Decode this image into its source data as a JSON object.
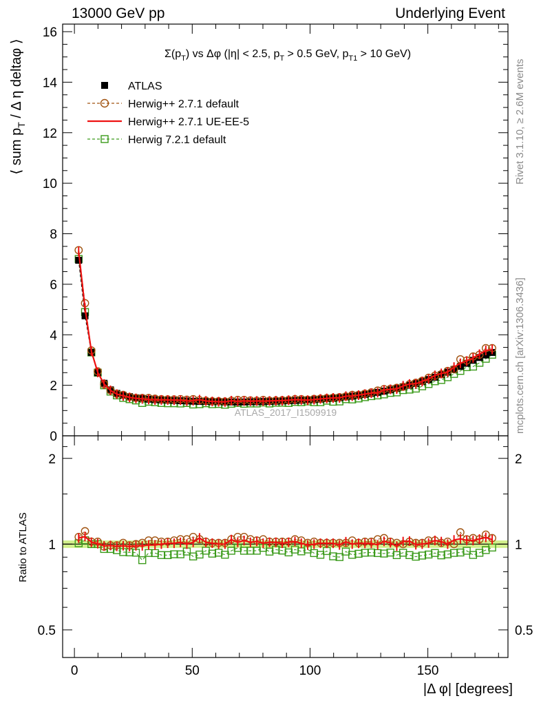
{
  "header": {
    "left": "13000 GeV pp",
    "right": "Underlying Event"
  },
  "side_labels": {
    "rivet": "Rivet 3.1.10, ≥ 2.6M events",
    "mcplots": "mcplots.cern.ch [arXiv:1306.3436]"
  },
  "chart_data": [
    {
      "type": "scatter",
      "title_parts": {
        "main": "Σ(p",
        "sub1": "T",
        "mid1": ") vs Δφ (|η| < 2.5, p",
        "sub2": "T",
        "mid2": " > 0.5 GeV, p",
        "sub3": "T1",
        "end": " > 10 GeV)"
      },
      "ylabel": "⟨ sum p_T / Δ η deltaφ ⟩",
      "ylabel_parts": {
        "a": "⟨ sum p",
        "sub": "T",
        "b": " / Δ η deltaφ ⟩"
      },
      "watermark": "ATLAS_2017_I1509919",
      "xlim": [
        -5,
        184
      ],
      "ylim": [
        0,
        16.3
      ],
      "yticks": [
        0,
        2,
        4,
        6,
        8,
        10,
        12,
        14,
        16
      ],
      "yticklabels": [
        "0",
        "2",
        "4",
        "6",
        "8",
        "10",
        "12",
        "14",
        "16"
      ],
      "legend_position": "top-left",
      "x": [
        1.8,
        4.5,
        7.2,
        9.9,
        12.6,
        15.3,
        18.0,
        20.7,
        23.4,
        26.1,
        28.8,
        31.5,
        34.2,
        36.9,
        39.6,
        42.3,
        45.0,
        47.7,
        50.4,
        53.1,
        55.8,
        58.5,
        61.2,
        63.9,
        66.6,
        69.3,
        72.0,
        74.7,
        77.4,
        80.1,
        82.8,
        85.5,
        88.2,
        90.9,
        93.6,
        96.3,
        99.0,
        101.7,
        104.4,
        107.1,
        109.8,
        112.5,
        115.2,
        117.9,
        120.6,
        123.3,
        126.0,
        128.7,
        131.4,
        134.1,
        136.8,
        139.5,
        142.2,
        144.9,
        147.6,
        150.3,
        153.0,
        155.7,
        158.4,
        161.1,
        163.8,
        166.5,
        169.2,
        171.9,
        174.6,
        177.3
      ],
      "series": [
        {
          "name": "ATLAS",
          "color": "#000000",
          "marker": "square-filled",
          "values": [
            6.95,
            4.75,
            3.3,
            2.5,
            2.08,
            1.82,
            1.68,
            1.6,
            1.55,
            1.5,
            1.48,
            1.45,
            1.43,
            1.42,
            1.41,
            1.4,
            1.39,
            1.38,
            1.37,
            1.36,
            1.36,
            1.35,
            1.35,
            1.34,
            1.34,
            1.34,
            1.34,
            1.35,
            1.35,
            1.36,
            1.36,
            1.37,
            1.38,
            1.39,
            1.4,
            1.41,
            1.42,
            1.43,
            1.45,
            1.47,
            1.49,
            1.51,
            1.54,
            1.57,
            1.6,
            1.64,
            1.68,
            1.72,
            1.77,
            1.82,
            1.88,
            1.94,
            2.0,
            2.07,
            2.15,
            2.23,
            2.32,
            2.42,
            2.52,
            2.63,
            2.75,
            2.87,
            2.99,
            3.1,
            3.2,
            3.3
          ]
        },
        {
          "name": "Herwig++ 2.7.1 default",
          "color": "#a0520f",
          "marker": "circle-open",
          "values": [
            7.35,
            5.25,
            3.38,
            2.55,
            2.04,
            1.8,
            1.66,
            1.62,
            1.54,
            1.5,
            1.5,
            1.5,
            1.47,
            1.45,
            1.44,
            1.44,
            1.45,
            1.43,
            1.45,
            1.41,
            1.39,
            1.37,
            1.37,
            1.36,
            1.39,
            1.42,
            1.42,
            1.4,
            1.39,
            1.42,
            1.39,
            1.4,
            1.41,
            1.42,
            1.45,
            1.45,
            1.43,
            1.46,
            1.47,
            1.49,
            1.51,
            1.53,
            1.56,
            1.62,
            1.62,
            1.67,
            1.72,
            1.79,
            1.85,
            1.86,
            1.9,
            1.94,
            2.04,
            2.1,
            2.18,
            2.3,
            2.38,
            2.44,
            2.57,
            2.63,
            3.03,
            2.98,
            3.14,
            3.21,
            3.47,
            3.47
          ]
        },
        {
          "name": "Herwig++ 2.7.1 UE-EE-5",
          "color": "#ee1111",
          "marker": "line-errorbars",
          "values": [
            7.3,
            5.05,
            3.35,
            2.51,
            2.05,
            1.8,
            1.65,
            1.58,
            1.52,
            1.48,
            1.46,
            1.44,
            1.42,
            1.42,
            1.42,
            1.41,
            1.41,
            1.38,
            1.39,
            1.43,
            1.38,
            1.36,
            1.35,
            1.34,
            1.39,
            1.36,
            1.38,
            1.37,
            1.38,
            1.37,
            1.38,
            1.39,
            1.39,
            1.41,
            1.43,
            1.42,
            1.41,
            1.43,
            1.46,
            1.48,
            1.5,
            1.5,
            1.57,
            1.57,
            1.61,
            1.65,
            1.69,
            1.71,
            1.81,
            1.84,
            1.85,
            1.98,
            2.05,
            2.06,
            2.15,
            2.25,
            2.39,
            2.47,
            2.52,
            2.72,
            2.87,
            2.96,
            3.08,
            3.23,
            3.38,
            3.42
          ]
        },
        {
          "name": "Herwig 7.2.1 default",
          "color": "#3a9a1a",
          "marker": "square-open",
          "values": [
            7.0,
            4.9,
            3.3,
            2.5,
            2.0,
            1.75,
            1.6,
            1.5,
            1.45,
            1.4,
            1.3,
            1.35,
            1.33,
            1.3,
            1.29,
            1.29,
            1.28,
            1.3,
            1.24,
            1.25,
            1.29,
            1.25,
            1.26,
            1.23,
            1.27,
            1.3,
            1.27,
            1.28,
            1.28,
            1.32,
            1.28,
            1.31,
            1.31,
            1.3,
            1.34,
            1.33,
            1.36,
            1.33,
            1.33,
            1.39,
            1.35,
            1.36,
            1.45,
            1.44,
            1.48,
            1.53,
            1.57,
            1.6,
            1.64,
            1.7,
            1.72,
            1.81,
            1.83,
            1.87,
            1.96,
            2.05,
            2.16,
            2.21,
            2.32,
            2.45,
            2.57,
            2.72,
            2.74,
            2.89,
            3.05,
            3.21
          ]
        }
      ]
    },
    {
      "type": "scatter",
      "ylabel": "Ratio to ATLAS",
      "xlabel": "|Δ φ| [degrees]",
      "xlim": [
        -5,
        184
      ],
      "ylim": [
        0.4,
        2.4
      ],
      "scale": "log",
      "xticks": [
        0,
        50,
        100,
        150
      ],
      "xticklabels": [
        "0",
        "50",
        "100",
        "150"
      ],
      "yticks": [
        0.5,
        1,
        2
      ],
      "yticklabels": [
        "0.5",
        "1",
        "2"
      ],
      "band_color": "#d2f08c",
      "ratio_values": {
        "Herwig++ 2.7.1 default": [
          1.06,
          1.11,
          1.02,
          1.02,
          0.98,
          0.99,
          0.99,
          1.01,
          0.99,
          1.0,
          1.01,
          1.03,
          1.03,
          1.02,
          1.02,
          1.03,
          1.04,
          1.04,
          1.06,
          1.04,
          1.02,
          1.01,
          1.01,
          1.01,
          1.04,
          1.06,
          1.06,
          1.04,
          1.03,
          1.04,
          1.02,
          1.02,
          1.02,
          1.02,
          1.04,
          1.03,
          1.01,
          1.02,
          1.01,
          1.01,
          1.01,
          1.01,
          1.01,
          1.03,
          1.01,
          1.02,
          1.02,
          1.04,
          1.05,
          1.02,
          1.01,
          1.0,
          1.02,
          1.01,
          1.01,
          1.03,
          1.03,
          1.01,
          1.02,
          1.0,
          1.1,
          1.04,
          1.05,
          1.04,
          1.08,
          1.05
        ]
      }
    }
  ]
}
